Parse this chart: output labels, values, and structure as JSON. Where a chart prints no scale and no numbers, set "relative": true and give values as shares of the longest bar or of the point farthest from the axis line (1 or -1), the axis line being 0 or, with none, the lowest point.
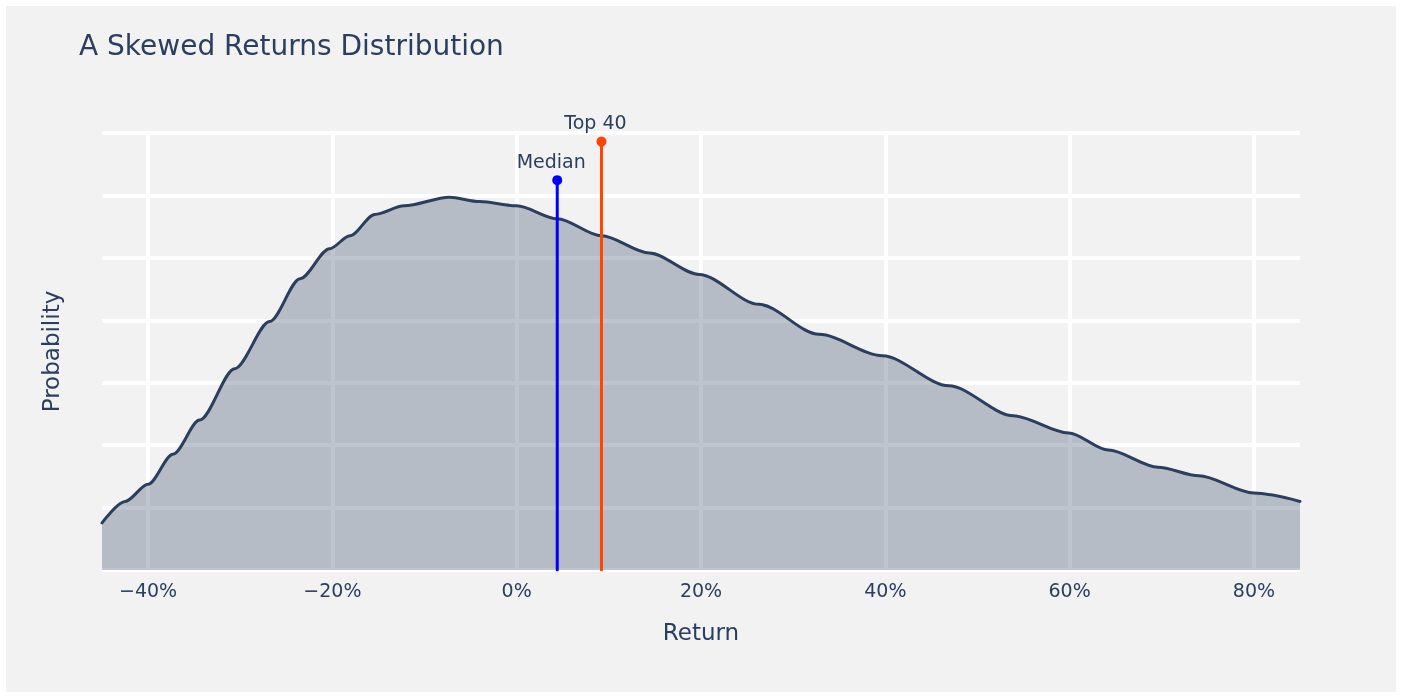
{
  "chart_data": {
    "type": "area",
    "title": "A Skewed Returns Distribution",
    "xlabel": "Return",
    "ylabel": "Probability",
    "relative": true,
    "grid": true,
    "xlim": [
      -45,
      85
    ],
    "xticks": [
      {
        "value": -40,
        "label": "−40%"
      },
      {
        "value": -20,
        "label": "−20%"
      },
      {
        "value": 0,
        "label": "0%"
      },
      {
        "value": 20,
        "label": "20%"
      },
      {
        "value": 40,
        "label": "40%"
      },
      {
        "value": 60,
        "label": "60%"
      },
      {
        "value": 80,
        "label": "80%"
      }
    ],
    "series": [
      {
        "color": "#2a3f5f",
        "x": [
          -45,
          -42.5,
          -40,
          -37.3,
          -34.4,
          -30.6,
          -26.8,
          -23.5,
          -20.3,
          -18.1,
          -15.4,
          -12.2,
          -7.3,
          -4,
          0,
          4.4,
          9.2,
          14.4,
          19.8,
          26.3,
          32.8,
          39.7,
          46.9,
          53.9,
          59.9,
          64.2,
          69.6,
          74,
          80,
          85
        ],
        "values": [
          0.11,
          0.16,
          0.2,
          0.27,
          0.35,
          0.47,
          0.58,
          0.68,
          0.75,
          0.78,
          0.83,
          0.85,
          0.87,
          0.86,
          0.85,
          0.82,
          0.78,
          0.74,
          0.69,
          0.62,
          0.55,
          0.5,
          0.43,
          0.36,
          0.32,
          0.28,
          0.24,
          0.22,
          0.18,
          0.16
        ]
      },
      {
        "type": "line",
        "name": "Median",
        "color": "#0000ff",
        "marker": "circle",
        "x": [
          4.4,
          4.4
        ],
        "values": [
          0,
          0.91
        ]
      },
      {
        "type": "line",
        "name": "Top 40",
        "color": "#ff4500",
        "marker": "circle",
        "x": [
          9.2,
          9.2
        ],
        "values": [
          0,
          1
        ]
      }
    ]
  }
}
